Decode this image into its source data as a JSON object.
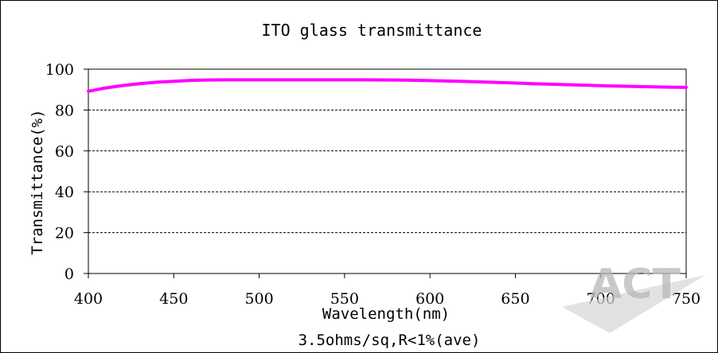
{
  "chart_data": {
    "type": "line",
    "title": "ITO glass transmittance",
    "xlabel": "Wavelength(nm)",
    "ylabel": "Transmittance(%)",
    "caption": "3.5ohms/sq,R<1%(ave)",
    "xlim": [
      400,
      750
    ],
    "ylim": [
      0,
      100
    ],
    "x_ticks": [
      400,
      450,
      500,
      550,
      600,
      650,
      700,
      750
    ],
    "y_ticks": [
      0,
      20,
      40,
      60,
      80,
      100
    ],
    "grid": "horizontal dashed",
    "line_color": "#ff00ff",
    "series": [
      {
        "x": [
          400,
          410,
          420,
          430,
          440,
          450,
          460,
          470,
          480,
          490,
          500,
          520,
          540,
          560,
          580,
          600,
          620,
          640,
          660,
          680,
          700,
          720,
          740,
          750
        ],
        "values": [
          89.2,
          90.8,
          92.0,
          92.9,
          93.6,
          94.1,
          94.5,
          94.7,
          94.8,
          94.8,
          94.8,
          94.8,
          94.8,
          94.8,
          94.7,
          94.4,
          94.0,
          93.5,
          92.9,
          92.4,
          91.9,
          91.5,
          91.2,
          91.1
        ]
      }
    ]
  },
  "watermark": {
    "text": "ACT",
    "color": "#b8b8b8"
  }
}
